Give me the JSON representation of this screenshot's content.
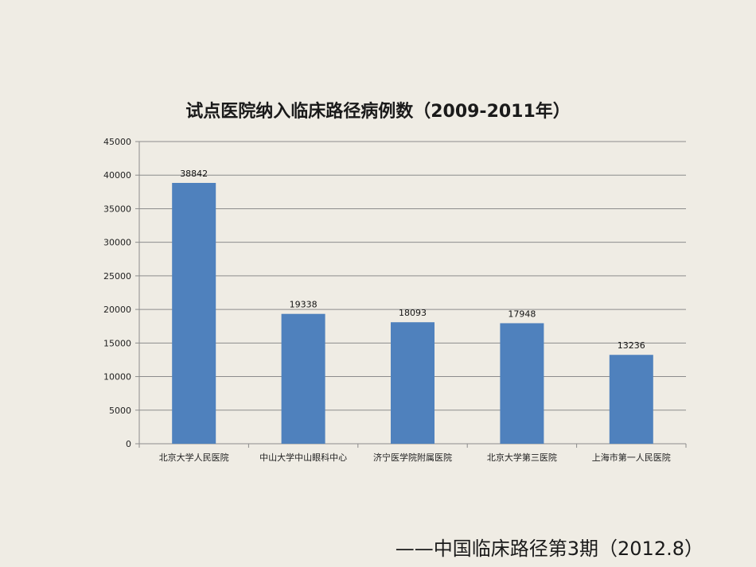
{
  "chart_data": {
    "type": "bar",
    "title": "试点医院纳入临床路径病例数（2009-2011年）",
    "categories": [
      "北京大学人民医院",
      "中山大学中山眼科中心",
      "济宁医学院附属医院",
      "北京大学第三医院",
      "上海市第一人民医院"
    ],
    "values": [
      38842,
      19338,
      18093,
      17948,
      13236
    ],
    "data_labels": [
      "38842",
      "19338",
      "18093",
      "17948",
      "13236"
    ],
    "yticks": [
      "0",
      "5000",
      "10000",
      "15000",
      "20000",
      "25000",
      "30000",
      "35000",
      "40000",
      "45000"
    ],
    "ylim": [
      0,
      45000
    ],
    "xlabel": "",
    "ylabel": "",
    "grid": true,
    "bar_color": "#4f81bd"
  },
  "source": "——中国临床路径第3期（2012.8）"
}
